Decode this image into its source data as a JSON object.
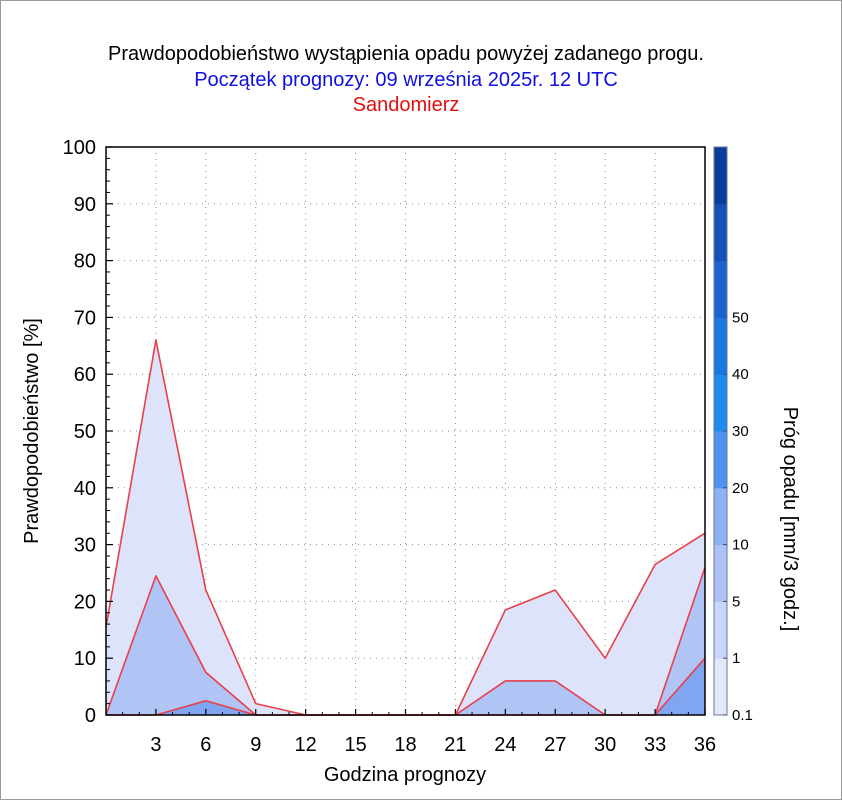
{
  "chart_data": {
    "type": "area",
    "title": "Prawdopodobieństwo wystąpienia opadu powyżej zadanego progu.",
    "subtitle": "Początek prognozy: 09 września 2025r. 12 UTC",
    "location": "Sandomierz",
    "xlabel": "Godzina prognozy",
    "ylabel": "Prawdopodobieństwo [%]",
    "colorbar_label": "Próg opadu [mm/3 godz.]",
    "xlim": [
      0,
      36
    ],
    "ylim": [
      0,
      100
    ],
    "x_ticks": [
      3,
      6,
      9,
      12,
      15,
      18,
      21,
      24,
      27,
      30,
      33,
      36
    ],
    "y_ticks": [
      0,
      10,
      20,
      30,
      40,
      50,
      60,
      70,
      80,
      90,
      100
    ],
    "grid": true,
    "x": [
      0,
      3,
      6,
      9,
      12,
      15,
      18,
      21,
      24,
      27,
      30,
      33,
      36
    ],
    "series": [
      {
        "threshold": 0.1,
        "color": "#dde3fb",
        "values": [
          15.5,
          66,
          22,
          2,
          0,
          0,
          0,
          0,
          18.5,
          22,
          10,
          26.5,
          32
        ]
      },
      {
        "threshold": 1,
        "color": "#b1c4f6",
        "values": [
          0,
          24.5,
          7.5,
          0,
          0,
          0,
          0,
          0,
          6,
          6,
          0,
          0,
          26
        ]
      },
      {
        "threshold": 5,
        "color": "#80a6f2",
        "values": [
          0,
          0,
          2.5,
          0,
          0,
          0,
          0,
          0,
          0,
          0,
          0,
          0,
          10
        ]
      }
    ],
    "colorbar": {
      "tick_labels": [
        "0.1",
        "1",
        "5",
        "10",
        "20",
        "30",
        "40",
        "50"
      ],
      "bands": [
        "#e3e8fb",
        "#c9d6f9",
        "#aec2f6",
        "#8fb0f3",
        "#4f93f0",
        "#1f8bef",
        "#1a78e2",
        "#1a64d0",
        "#1450b8",
        "#0c3d9a"
      ]
    }
  }
}
